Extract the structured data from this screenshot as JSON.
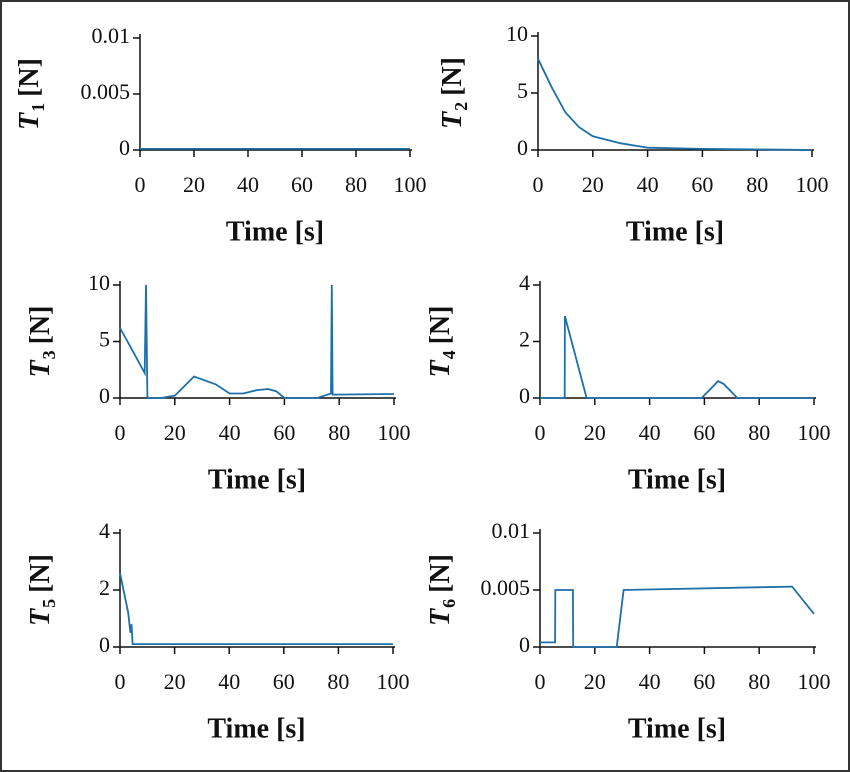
{
  "chart_data": [
    {
      "type": "line",
      "xlabel": "Time [s]",
      "ylabel": "T",
      "ylabel_sub": "1",
      "ylabel_unit": "[N]",
      "x": [
        0,
        100
      ],
      "values": [
        0.0001,
        0.0001
      ],
      "color": "#1f6fa8",
      "xlim": [
        0,
        100
      ],
      "xticks": [
        0,
        20,
        40,
        60,
        80,
        100
      ],
      "ylim": [
        0,
        0.01
      ],
      "yticks": [
        0,
        0.005,
        0.01
      ]
    },
    {
      "type": "line",
      "xlabel": "Time [s]",
      "ylabel": "T",
      "ylabel_sub": "2",
      "ylabel_unit": "[N]",
      "x": [
        0,
        5,
        10,
        15,
        20,
        30,
        40,
        60,
        80,
        100
      ],
      "values": [
        8,
        5.5,
        3.3,
        2,
        1.2,
        0.6,
        0.2,
        0.1,
        0.05,
        0
      ],
      "color": "#1f6fa8",
      "xlim": [
        0,
        100
      ],
      "xticks": [
        0,
        20,
        40,
        60,
        80,
        100
      ],
      "ylim": [
        0,
        10
      ],
      "yticks": [
        0,
        5,
        10
      ]
    },
    {
      "type": "line",
      "xlabel": "Time [s]",
      "ylabel": "T",
      "ylabel_sub": "3",
      "ylabel_unit": "[N]",
      "x": [
        0,
        5,
        9,
        9.5,
        10,
        15,
        20,
        27,
        35,
        40,
        45,
        50,
        54,
        57,
        60,
        72,
        77,
        77.3,
        77.6,
        100
      ],
      "values": [
        6.2,
        4,
        2.2,
        10,
        0,
        0,
        0.2,
        1.9,
        1.2,
        0.4,
        0.4,
        0.7,
        0.8,
        0.6,
        0,
        0,
        0.4,
        10,
        0.3,
        0.35
      ],
      "color": "#1f6fa8",
      "xlim": [
        0,
        100
      ],
      "xticks": [
        0,
        20,
        40,
        60,
        80,
        100
      ],
      "ylim": [
        0,
        10
      ],
      "yticks": [
        0,
        5,
        10
      ]
    },
    {
      "type": "line",
      "xlabel": "Time [s]",
      "ylabel": "T",
      "ylabel_sub": "4",
      "ylabel_unit": "[N]",
      "x": [
        0,
        9,
        9.1,
        17,
        59,
        65,
        67,
        72,
        100
      ],
      "values": [
        0,
        0,
        2.9,
        0,
        0,
        0.6,
        0.5,
        0,
        0
      ],
      "color": "#1f6fa8",
      "xlim": [
        0,
        100
      ],
      "xticks": [
        0,
        20,
        40,
        60,
        80,
        100
      ],
      "ylim": [
        0,
        4
      ],
      "yticks": [
        0,
        2,
        4
      ]
    },
    {
      "type": "line",
      "xlabel": "Time [s]",
      "ylabel": "T",
      "ylabel_sub": "5",
      "ylabel_unit": "[N]",
      "x": [
        0,
        3,
        3.8,
        4.2,
        4.6,
        100
      ],
      "values": [
        2.6,
        1.2,
        0.5,
        0.8,
        0.1,
        0.1
      ],
      "color": "#1f6fa8",
      "xlim": [
        0,
        100
      ],
      "xticks": [
        0,
        20,
        40,
        60,
        80,
        100
      ],
      "ylim": [
        0,
        4
      ],
      "yticks": [
        0,
        2,
        4
      ]
    },
    {
      "type": "line",
      "xlabel": "Time [s]",
      "ylabel": "T",
      "ylabel_sub": "6",
      "ylabel_unit": "[N]",
      "x": [
        0,
        5.5,
        5.6,
        12,
        12.1,
        28,
        30.5,
        92,
        100
      ],
      "values": [
        0.0004,
        0.0004,
        0.005,
        0.005,
        0,
        0,
        0.005,
        0.0053,
        0.0029
      ],
      "color": "#1f6fa8",
      "xlim": [
        0,
        100
      ],
      "xticks": [
        0,
        20,
        40,
        60,
        80,
        100
      ],
      "ylim": [
        0,
        0.01
      ],
      "yticks": [
        0,
        0.005,
        0.01
      ]
    }
  ]
}
